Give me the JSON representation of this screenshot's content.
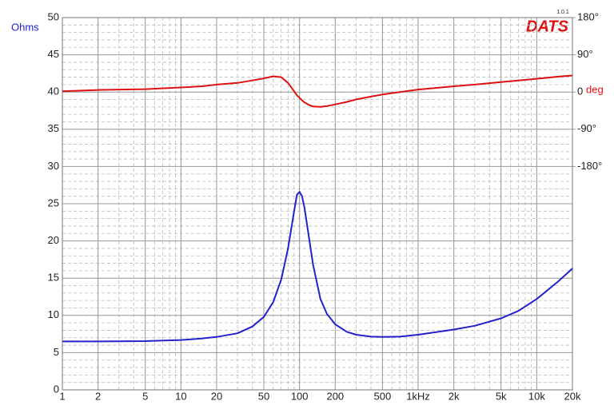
{
  "chart_data": {
    "type": "line",
    "logo": "DATS",
    "version": "1.0.1",
    "y_label": "Ohms",
    "y2_label": "deg",
    "x": [
      1,
      2,
      5,
      10,
      15,
      20,
      30,
      40,
      50,
      60,
      70,
      80,
      90,
      95,
      100,
      105,
      110,
      120,
      130,
      150,
      170,
      200,
      250,
      300,
      400,
      500,
      700,
      1000,
      2000,
      3000,
      5000,
      7000,
      10000,
      15000,
      20000
    ],
    "series": [
      {
        "name": "Impedance",
        "color": "#2222cc",
        "axis": "y",
        "values": [
          6.5,
          6.5,
          6.55,
          6.7,
          6.9,
          7.1,
          7.6,
          8.5,
          9.8,
          11.8,
          14.8,
          19,
          24,
          26.2,
          26.6,
          26,
          24.5,
          20.5,
          16.8,
          12.2,
          10.2,
          8.8,
          7.8,
          7.4,
          7.15,
          7.1,
          7.15,
          7.4,
          8.1,
          8.6,
          9.6,
          10.6,
          12.2,
          14.5,
          16.3
        ]
      },
      {
        "name": "Phase",
        "color": "#dd1111",
        "axis": "y2",
        "values": [
          2,
          5,
          7,
          11,
          14,
          18,
          22,
          28,
          33,
          38,
          36,
          22,
          2,
          -8,
          -14,
          -20,
          -25,
          -31,
          -35,
          -36,
          -34,
          -30,
          -24,
          -18,
          -11,
          -6,
          0,
          6,
          14,
          18,
          24,
          28,
          32,
          37,
          40
        ]
      }
    ],
    "xlim": [
      1,
      20000
    ],
    "log_x": true,
    "xticks": [
      1,
      2,
      5,
      10,
      20,
      50,
      100,
      200,
      500,
      {
        "value": 1000,
        "label": "1kHz"
      },
      {
        "value": 2000,
        "label": "2k"
      },
      {
        "value": 5000,
        "label": "5k"
      },
      {
        "value": 10000,
        "label": "10k"
      },
      {
        "value": 20000,
        "label": "20k"
      }
    ],
    "ylim": [
      0,
      50
    ],
    "yticks": [
      0,
      5,
      10,
      15,
      20,
      25,
      30,
      35,
      40,
      45,
      50
    ],
    "y2lim": [
      -720,
      180
    ],
    "y2ticks": [
      {
        "value": 180,
        "label": "180°"
      },
      {
        "value": 90,
        "label": "90°"
      },
      0,
      {
        "value": -90,
        "label": "-90°"
      },
      {
        "value": -180,
        "label": "-180°"
      }
    ],
    "grid": true
  }
}
